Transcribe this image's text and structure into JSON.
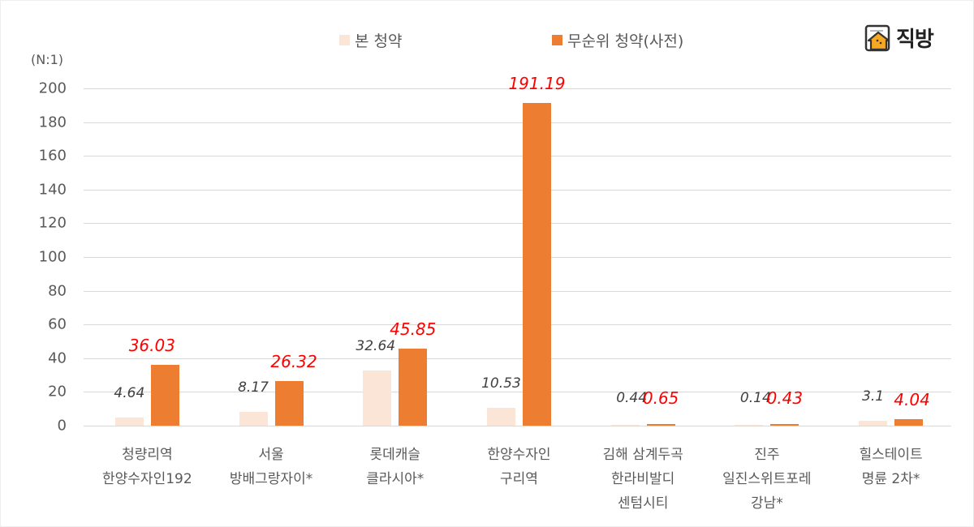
{
  "legend": [
    {
      "label": "본 청약",
      "color": "#FBE5D6"
    },
    {
      "label": "무순위 청약(사전)",
      "color": "#ED7D31"
    }
  ],
  "logo": {
    "text": "직방",
    "icon": "house-logo-icon"
  },
  "y_unit": "(N:1)",
  "y_ticks": [
    "0",
    "20",
    "40",
    "60",
    "80",
    "100",
    "120",
    "140",
    "160",
    "180",
    "200"
  ],
  "colors": {
    "main": "#FBE5D6",
    "pre": "#ED7D31",
    "pre_label": "#FF0000",
    "main_label": "#404040",
    "grid": "#D9D9D9"
  },
  "categories": [
    {
      "lines": [
        "청량리역",
        "한양수자인192"
      ]
    },
    {
      "lines": [
        "서울",
        "방배그랑자이*"
      ]
    },
    {
      "lines": [
        "롯데캐슬",
        "클라시아*"
      ]
    },
    {
      "lines": [
        "한양수자인",
        "구리역"
      ]
    },
    {
      "lines": [
        "김해 삼계두곡",
        "한라비발디",
        "센텀시티"
      ]
    },
    {
      "lines": [
        "진주",
        "일진스위트포레",
        "강남*"
      ]
    },
    {
      "lines": [
        "힐스테이트",
        "명륜 2차*"
      ]
    }
  ],
  "labels": {
    "main": [
      "4.64",
      "8.17",
      "32.64",
      "10.53",
      "0.44",
      "0.14",
      "3.1"
    ],
    "pre": [
      "36.03",
      "26.32",
      "45.85",
      "191.19",
      "0.65",
      "0.43",
      "4.04"
    ]
  },
  "chart_data": {
    "type": "bar",
    "title": "",
    "xlabel": "",
    "ylabel": "(N:1)",
    "ylim": [
      0,
      200
    ],
    "grid": true,
    "legend_position": "top",
    "categories": [
      "청량리역 한양수자인192",
      "서울 방배그랑자이*",
      "롯데캐슬 클라시아*",
      "한양수자인 구리역",
      "김해 삼계두곡 한라비발디 센텀시티",
      "진주 일진스위트포레 강남*",
      "힐스테이트 명륜 2차*"
    ],
    "series": [
      {
        "name": "본 청약",
        "values": [
          4.64,
          8.17,
          32.64,
          10.53,
          0.44,
          0.14,
          3.1
        ]
      },
      {
        "name": "무순위 청약(사전)",
        "values": [
          36.03,
          26.32,
          45.85,
          191.19,
          0.65,
          0.43,
          4.04
        ]
      }
    ]
  }
}
